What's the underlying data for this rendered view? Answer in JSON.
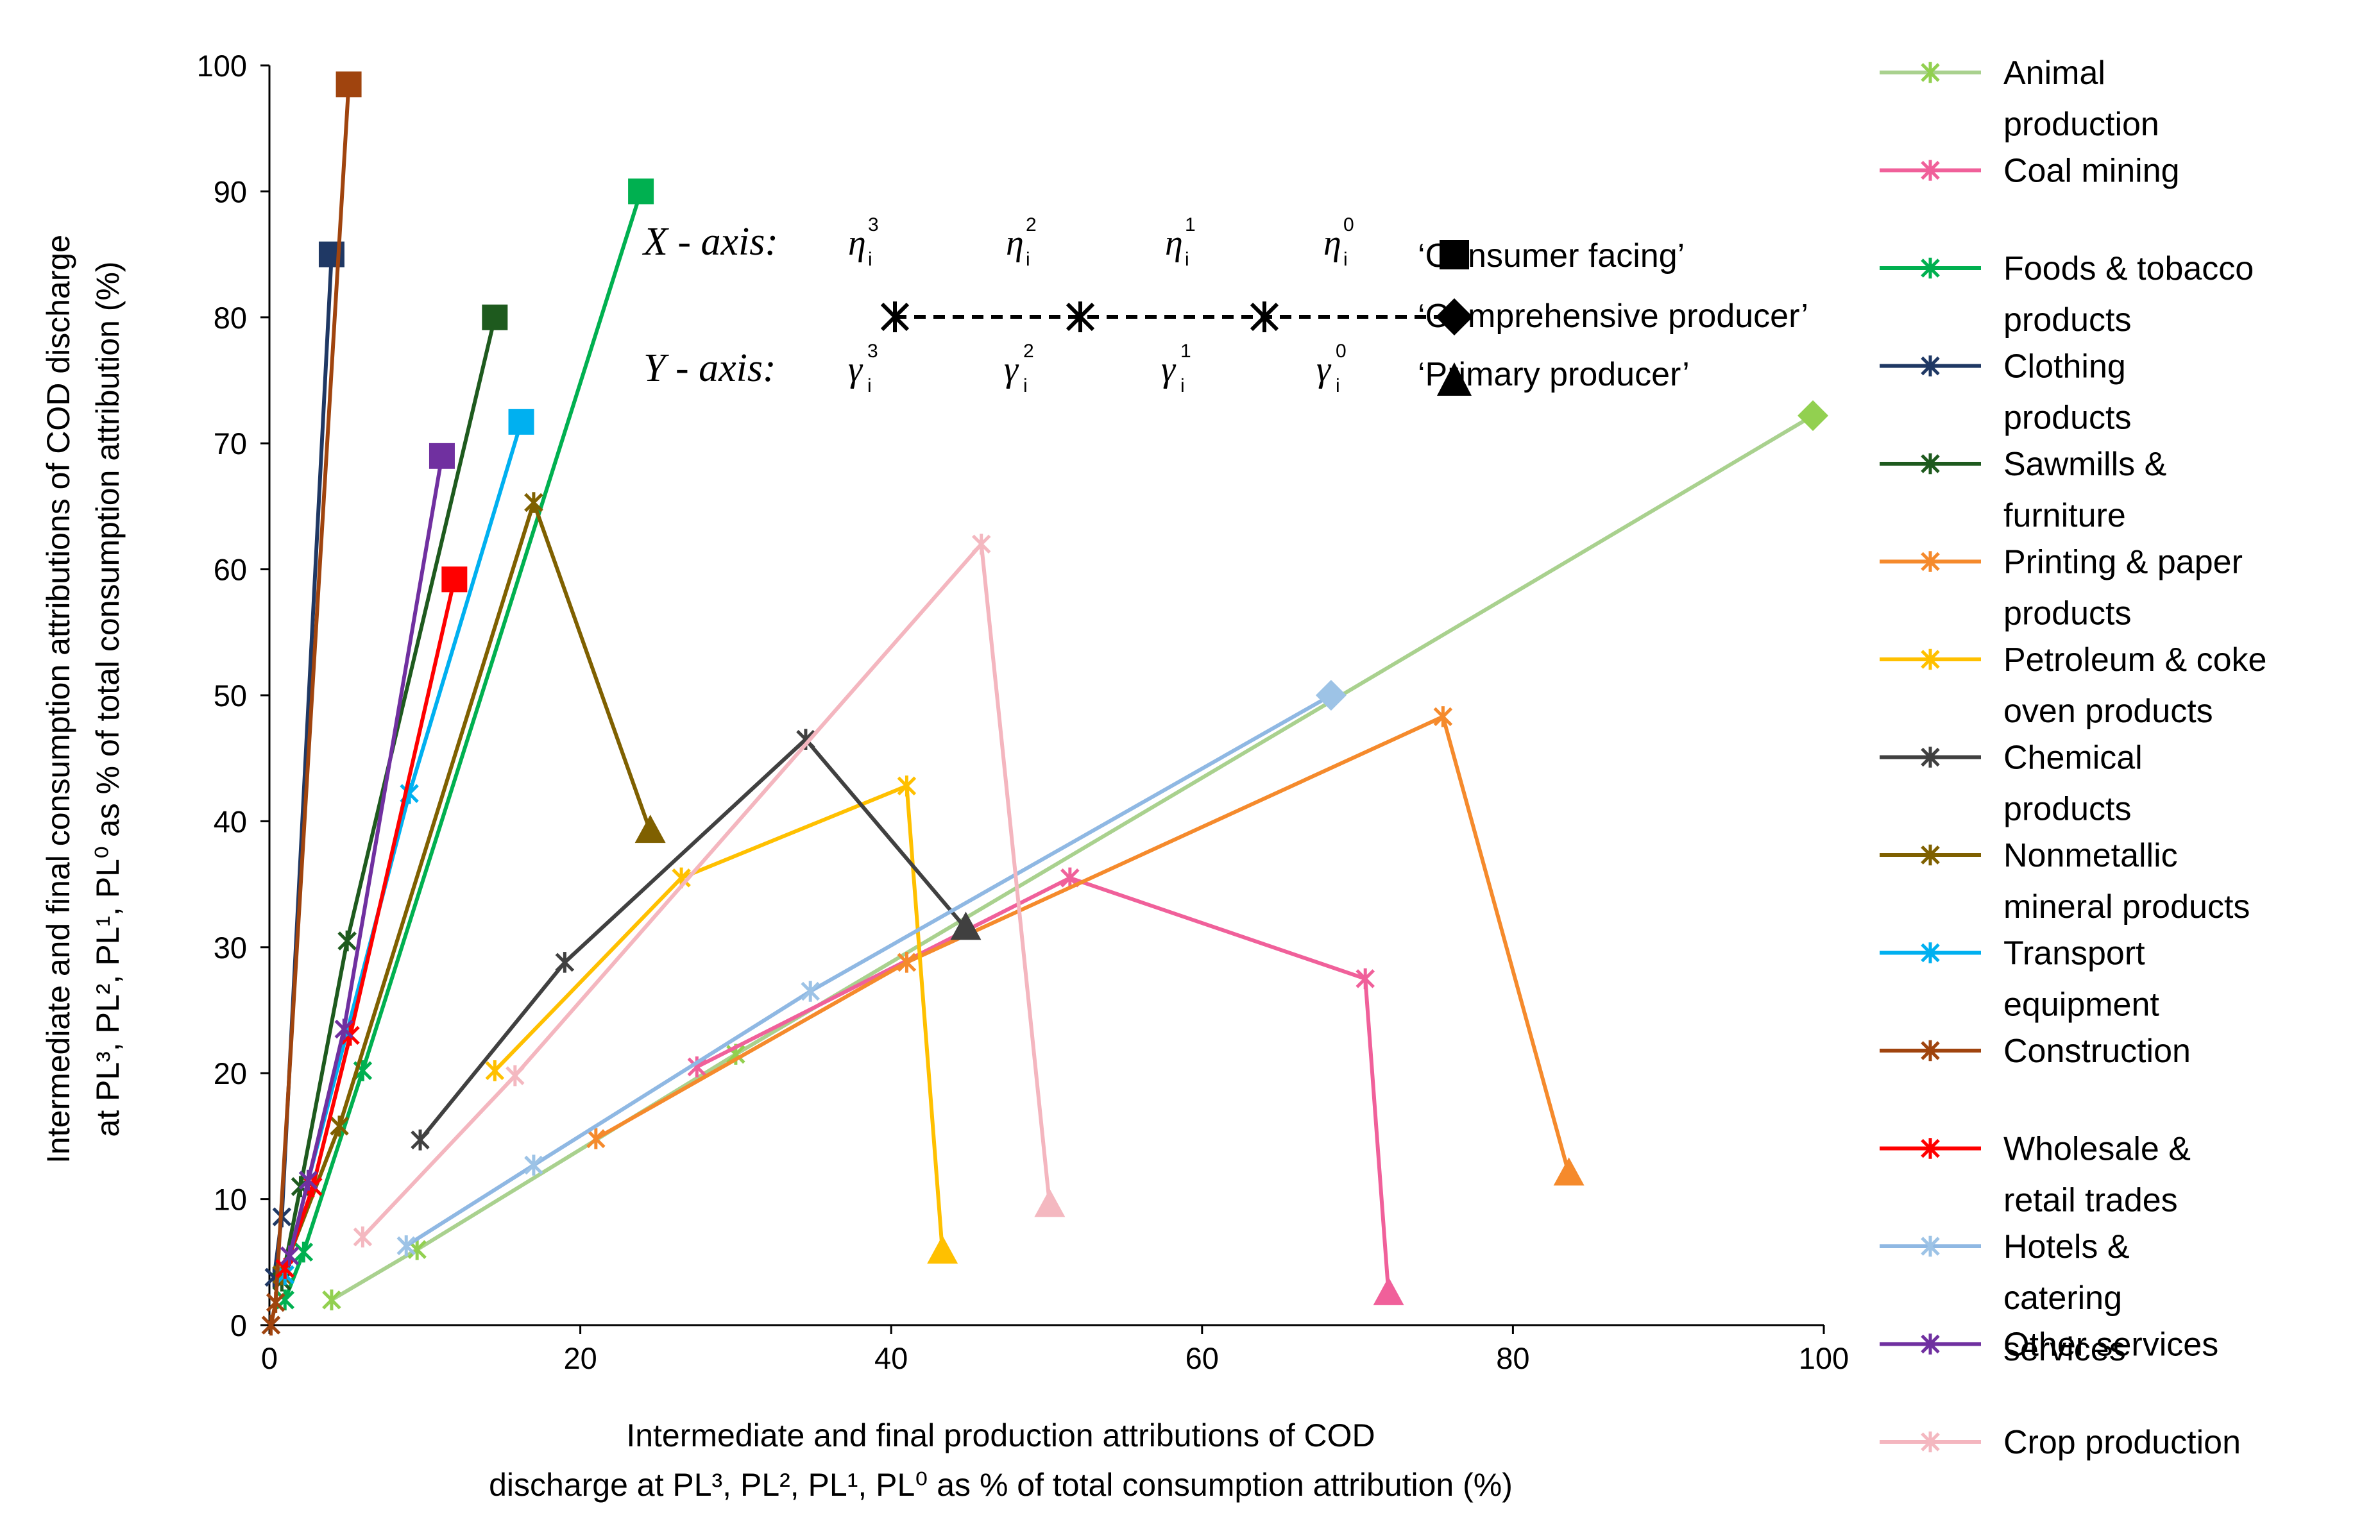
{
  "chart_data": {
    "type": "line",
    "xlabel": [
      "Intermediate and final production attributions of COD",
      "discharge at PL³, PL², PL¹, PL⁰ as % of total consumption attribution (%)"
    ],
    "ylabel": [
      "Intermediate and final consumption attributions of COD discharge",
      "at PL³, PL², PL¹, PL⁰ as % of total consumption attribution (%)"
    ],
    "xlim": [
      0,
      100
    ],
    "ylim": [
      0,
      100
    ],
    "xticks": [
      0,
      20,
      40,
      60,
      80,
      100
    ],
    "yticks": [
      0,
      10,
      20,
      30,
      40,
      50,
      60,
      70,
      80,
      90,
      100
    ],
    "grid": false,
    "legend_position": "right",
    "series": [
      {
        "name": "Animal production",
        "color": "#92d050",
        "line_color": "#a9d18e",
        "end_marker": "diamond",
        "points": [
          [
            4.0,
            2.0
          ],
          [
            9.5,
            6.0
          ],
          [
            30.0,
            21.5
          ],
          [
            99.3,
            72.2
          ]
        ]
      },
      {
        "name": "Coal mining",
        "color": "#f0609a",
        "end_marker": "triangle",
        "points": [
          [
            27.5,
            20.5
          ],
          [
            51.5,
            35.5
          ],
          [
            70.5,
            27.5
          ],
          [
            72.0,
            2.5
          ]
        ]
      },
      {
        "name": "Foods & tobacco products",
        "color": "#00b050",
        "end_marker": "square",
        "points": [
          [
            1.0,
            2.0
          ],
          [
            2.2,
            5.8
          ],
          [
            6.0,
            20.2
          ],
          [
            23.9,
            90.0
          ]
        ]
      },
      {
        "name": "Clothing products",
        "color": "#1f3864",
        "end_marker": "square",
        "points": [
          [
            0.3,
            3.8
          ],
          [
            0.8,
            8.6
          ],
          [
            4.0,
            85.0
          ]
        ]
      },
      {
        "name": "Sawmills & furniture",
        "color": "#1e5a1e",
        "end_marker": "square",
        "points": [
          [
            0.8,
            3.5
          ],
          [
            2.0,
            11.0
          ],
          [
            5.0,
            30.5
          ],
          [
            14.5,
            80.0
          ]
        ]
      },
      {
        "name": "Printing & paper products",
        "color": "#f58a2c",
        "end_marker": "triangle",
        "points": [
          [
            21.0,
            14.8
          ],
          [
            41.0,
            28.8
          ],
          [
            75.5,
            48.3
          ],
          [
            83.6,
            12.0
          ]
        ]
      },
      {
        "name": "Petroleum & coke oven products",
        "color": "#ffc000",
        "end_marker": "triangle",
        "points": [
          [
            14.5,
            20.2
          ],
          [
            26.5,
            35.5
          ],
          [
            41.0,
            42.8
          ],
          [
            43.3,
            5.8
          ]
        ]
      },
      {
        "name": "Chemical products",
        "color": "#404040",
        "end_marker": "triangle",
        "points": [
          [
            9.7,
            14.7
          ],
          [
            19.0,
            28.8
          ],
          [
            34.5,
            46.5
          ],
          [
            44.8,
            31.5
          ]
        ]
      },
      {
        "name": "Nonmetallic mineral products",
        "color": "#7f6000",
        "end_marker": "triangle",
        "points": [
          [
            0.8,
            4.0
          ],
          [
            4.5,
            15.8
          ],
          [
            17.0,
            65.3
          ],
          [
            24.5,
            39.2
          ]
        ]
      },
      {
        "name": "Transport equipment",
        "color": "#00b0f0",
        "end_marker": "square",
        "points": [
          [
            1.0,
            4.0
          ],
          [
            2.5,
            11.5
          ],
          [
            9.0,
            42.2
          ],
          [
            16.2,
            71.7
          ]
        ]
      },
      {
        "name": "Construction",
        "color": "#a0440e",
        "end_marker": "square",
        "points": [
          [
            0.1,
            0.0
          ],
          [
            0.4,
            1.8
          ],
          [
            5.1,
            98.5
          ]
        ]
      },
      {
        "name": "Wholesale & retail trades",
        "color": "#ff0000",
        "end_marker": "square",
        "points": [
          [
            1.0,
            4.5
          ],
          [
            2.8,
            11.0
          ],
          [
            5.2,
            23.0
          ],
          [
            11.9,
            59.2
          ]
        ]
      },
      {
        "name": "Hotels & catering services",
        "color": "#9dc3e6",
        "line_color": "#8fb8e3",
        "end_marker": "diamond",
        "points": [
          [
            8.8,
            6.3
          ],
          [
            17.0,
            12.7
          ],
          [
            34.8,
            26.5
          ],
          [
            68.3,
            50.0
          ]
        ]
      },
      {
        "name": "Other services",
        "color": "#7030a0",
        "end_marker": "square",
        "points": [
          [
            1.3,
            5.5
          ],
          [
            2.5,
            11.5
          ],
          [
            4.8,
            23.5
          ],
          [
            11.1,
            69.0
          ]
        ]
      },
      {
        "name": "Crop production",
        "color": "#f4b8c0",
        "line_color": "#f4b6bf",
        "end_marker": "triangle",
        "points": [
          [
            6.0,
            7.0
          ],
          [
            15.8,
            19.8
          ],
          [
            45.8,
            62.0
          ],
          [
            50.2,
            9.5
          ]
        ]
      }
    ]
  },
  "annotation": {
    "x_axis_label": "X - axis:",
    "y_axis_label": "Y - axis:",
    "x_eta": [
      "η",
      "η",
      "η",
      "η"
    ],
    "y_gamma": [
      "γ",
      "γ",
      "γ",
      "γ"
    ],
    "level_superscripts": [
      "3",
      "2",
      "1",
      "0"
    ],
    "index_subscript": "i",
    "levels": [
      {
        "label": "‘Consumer facing’",
        "marker": "square"
      },
      {
        "label": "‘Comprehensive producer’",
        "marker": "diamond"
      },
      {
        "label": "‘Primary producer’",
        "marker": "triangle"
      }
    ]
  }
}
